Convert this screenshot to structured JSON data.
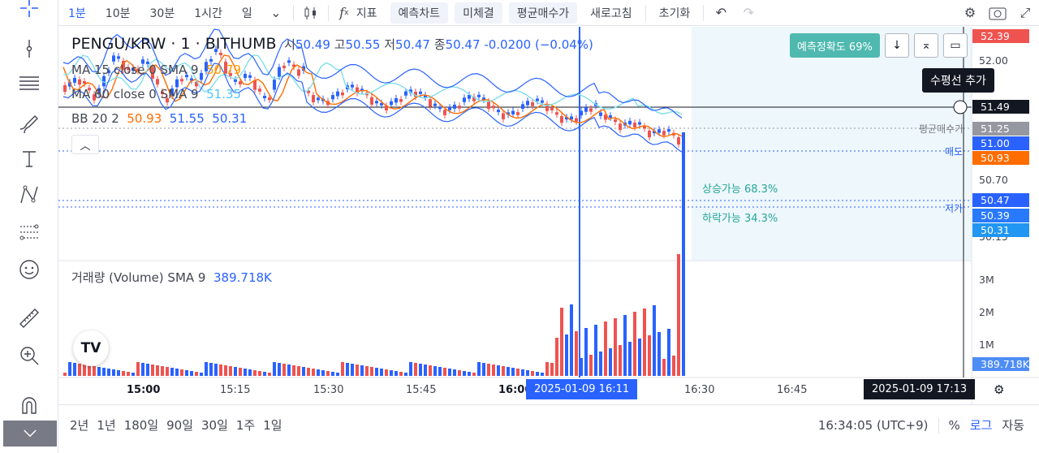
{
  "toolbar": {
    "intervals": [
      "1분",
      "10분",
      "30분",
      "1시간",
      "일"
    ],
    "active_interval": "1분",
    "indicator_label": "지표",
    "buttons": [
      "예측차트",
      "미체결",
      "평균매수가",
      "새로고침",
      "초기화"
    ]
  },
  "legend": {
    "symbol": "PENGU/KRW · 1 · BITHUMB",
    "open_label": "시",
    "open": "50.49",
    "high_label": "고",
    "high": "50.55",
    "low_label": "저",
    "low": "50.47",
    "close_label": "종",
    "close": "50.47",
    "change": "-0.0200 (−0.04%)",
    "ma15_label": "MA 15 close 0 SMA 9",
    "ma15_value": "50.79",
    "ma60_label": "MA 60 close 0 SMA 9",
    "ma60_value": "51.35",
    "bb_label": "BB 20 2",
    "bb_mid": "50.93",
    "bb_upper": "51.55",
    "bb_lower": "50.31"
  },
  "prediction": {
    "accuracy_button": "예측정확도 69%",
    "up_text": "상승가능 68.3%",
    "down_text": "하락가능 34.3%"
  },
  "tooltip": "수평선 추가",
  "price_axis": {
    "labels": [
      "52.00",
      "50.70",
      "50.15"
    ],
    "tags": {
      "top": "52.39",
      "crosshair": "51.49",
      "avg_buy": "51.25",
      "sell": "51.00",
      "bb_mid": "50.93",
      "last": "50.47",
      "low_pred": "50.39",
      "bb_lower": "50.31"
    },
    "line_labels": {
      "avg_buy": "평균매수가",
      "sell": "매도",
      "low": "저가"
    }
  },
  "volume": {
    "label": "거래량 (Volume) SMA 9",
    "value": "389.718K",
    "axis": [
      "3M",
      "2M",
      "1M"
    ]
  },
  "time_axis": {
    "labels": [
      "15:00",
      "15:15",
      "15:30",
      "15:45",
      "16:00",
      "16:30",
      "16:45"
    ],
    "cursor_tag": "2025-01-09   16:11",
    "end_tag": "2025-01-09   17:13"
  },
  "bottom": {
    "ranges": [
      "2년",
      "1년",
      "180일",
      "90일",
      "30일",
      "1주",
      "1일"
    ],
    "clock": "16:34:05 (UTC+9)",
    "percent": "%",
    "log": "로그",
    "auto": "자동"
  },
  "colors": {
    "up": "#2962ff",
    "down": "#ef5350",
    "accent": "#2962ff",
    "teal": "#4fb9b0"
  }
}
